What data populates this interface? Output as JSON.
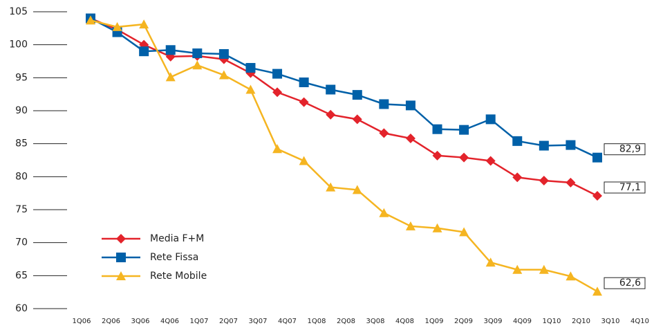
{
  "chart_data": {
    "type": "line",
    "categories": [
      "1Q06",
      "2Q06",
      "3Q06",
      "4Q06",
      "1Q07",
      "2Q07",
      "3Q07",
      "4Q07",
      "1Q08",
      "2Q08",
      "3Q08",
      "4Q08",
      "1Q09",
      "2Q09",
      "3Q09",
      "4Q09",
      "1Q10",
      "2Q10",
      "3Q10",
      "4Q10"
    ],
    "series": [
      {
        "name": "Media F+M",
        "color": "#e3232b",
        "marker": "diamond",
        "values": [
          104,
          102.3,
          100,
          98.2,
          98.3,
          97.8,
          95.7,
          92.8,
          91.3,
          89.4,
          88.7,
          86.6,
          85.8,
          83.2,
          82.9,
          82.4,
          79.9,
          79.4,
          79.1,
          77.1
        ],
        "value_labels": [
          null,
          null,
          null,
          null,
          null,
          null,
          null,
          null,
          null,
          null,
          null,
          null,
          null,
          null,
          null,
          null,
          null,
          null,
          null,
          "77,1"
        ]
      },
      {
        "name": "Rete Fissa",
        "color": "#0060a8",
        "marker": "square",
        "values": [
          104,
          101.9,
          99,
          99.2,
          98.7,
          98.6,
          96.5,
          95.6,
          94.3,
          93.2,
          92.4,
          91,
          90.8,
          87.2,
          87.1,
          88.7,
          85.4,
          84.7,
          84.8,
          82.9
        ],
        "value_labels": [
          null,
          null,
          null,
          null,
          null,
          null,
          null,
          null,
          null,
          null,
          null,
          null,
          null,
          null,
          null,
          null,
          null,
          null,
          null,
          "82,9"
        ]
      },
      {
        "name": "Rete Mobile",
        "color": "#f5b521",
        "marker": "triangle",
        "values": [
          103.7,
          102.7,
          103.1,
          95.1,
          96.9,
          95.4,
          93.2,
          84.2,
          82.4,
          78.4,
          78,
          74.5,
          72.5,
          72.2,
          71.6,
          67,
          65.9,
          65.9,
          64.9,
          62.6
        ],
        "value_labels": [
          null,
          null,
          null,
          null,
          null,
          null,
          null,
          null,
          null,
          null,
          null,
          null,
          null,
          null,
          null,
          null,
          null,
          null,
          null,
          "62,6"
        ]
      }
    ],
    "ylim": [
      60,
      105
    ],
    "yticks": [
      60,
      65,
      70,
      75,
      80,
      85,
      90,
      95,
      100,
      105
    ],
    "legend": "lower left"
  }
}
